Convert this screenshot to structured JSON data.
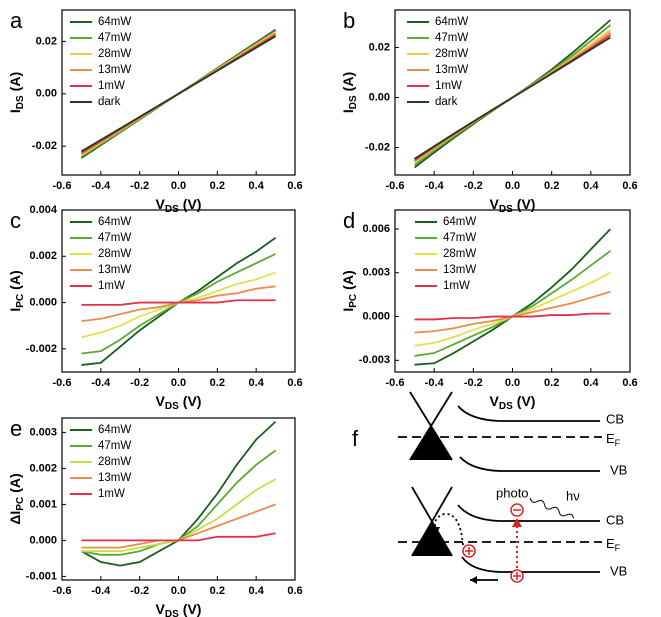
{
  "chart_data": [
    {
      "type": "line",
      "panel": "a",
      "xlabel": {
        "main": "V",
        "sub": "DS",
        "unit": "(V)"
      },
      "ylabel": {
        "main": "I",
        "sub": "DS",
        "unit": "(A)"
      },
      "xlim": [
        -0.6,
        0.6
      ],
      "xticks": [
        -0.6,
        -0.4,
        -0.2,
        {
          "value": 0,
          "label": "0.0"
        },
        0.2,
        0.4,
        0.6
      ],
      "ylim": [
        -0.031,
        0.032
      ],
      "yticks": [
        -0.02,
        {
          "value": 0,
          "label": "0.00"
        },
        0.02
      ],
      "x": [
        -0.5,
        -0.4,
        -0.3,
        -0.2,
        -0.1,
        0,
        0.1,
        0.2,
        0.3,
        0.4,
        0.5
      ],
      "series": [
        {
          "name": "64mW",
          "color": "#1b5e20",
          "values": [
            -0.0245,
            -0.0196,
            -0.0147,
            -0.0098,
            -0.0049,
            0,
            0.0049,
            0.0098,
            0.0147,
            0.0196,
            0.0245
          ]
        },
        {
          "name": "47mW",
          "color": "#5aab32",
          "values": [
            -0.024,
            -0.0192,
            -0.0144,
            -0.0096,
            -0.0048,
            0,
            0.0048,
            0.0096,
            0.0144,
            0.0192,
            0.024
          ]
        },
        {
          "name": "28mW",
          "color": "#f2c84b",
          "values": [
            -0.0235,
            -0.0188,
            -0.0141,
            -0.0094,
            -0.0047,
            0,
            0.0047,
            0.0094,
            0.0141,
            0.0188,
            0.0235
          ]
        },
        {
          "name": "13mW",
          "color": "#ee8a4e",
          "values": [
            -0.023,
            -0.0184,
            -0.0138,
            -0.0092,
            -0.0046,
            0,
            0.0046,
            0.0092,
            0.0138,
            0.0184,
            0.023
          ]
        },
        {
          "name": "1mW",
          "color": "#e3314b",
          "values": [
            -0.0225,
            -0.018,
            -0.0135,
            -0.009,
            -0.0045,
            0,
            0.0045,
            0.009,
            0.0135,
            0.018,
            0.0225
          ]
        },
        {
          "name": "dark",
          "color": "#1f3f1f",
          "values": [
            -0.022,
            -0.0176,
            -0.0132,
            -0.0088,
            -0.0044,
            0,
            0.0044,
            0.0088,
            0.0132,
            0.0176,
            0.022
          ]
        }
      ]
    },
    {
      "type": "line",
      "panel": "b",
      "xlabel": {
        "main": "V",
        "sub": "DS",
        "unit": "(V)"
      },
      "ylabel": {
        "main": "I",
        "sub": "DS",
        "unit": "(A)"
      },
      "xlim": [
        -0.6,
        0.6
      ],
      "xticks": [
        -0.6,
        -0.4,
        -0.2,
        {
          "value": 0,
          "label": "0.0"
        },
        0.2,
        0.4,
        0.6
      ],
      "ylim": [
        -0.031,
        0.035
      ],
      "yticks": [
        -0.02,
        {
          "value": 0,
          "label": "0.00"
        },
        0.02
      ],
      "x": [
        -0.5,
        -0.4,
        -0.3,
        -0.2,
        -0.1,
        0,
        0.1,
        0.2,
        0.3,
        0.4,
        0.5
      ],
      "series": [
        {
          "name": "64mW",
          "color": "#1b5e20",
          "values": [
            -0.028,
            -0.022,
            -0.0162,
            -0.0106,
            -0.0052,
            0,
            0.0054,
            0.0112,
            0.0175,
            0.0242,
            0.031
          ]
        },
        {
          "name": "47mW",
          "color": "#5aab32",
          "values": [
            -0.027,
            -0.0212,
            -0.0156,
            -0.0102,
            -0.005,
            0,
            0.0052,
            0.0106,
            0.0164,
            0.0226,
            0.029
          ]
        },
        {
          "name": "28mW",
          "color": "#f2c84b",
          "values": [
            -0.026,
            -0.0205,
            -0.0151,
            -0.0099,
            -0.0049,
            0,
            0.005,
            0.0101,
            0.0155,
            0.0212,
            0.027
          ]
        },
        {
          "name": "13mW",
          "color": "#ee8a4e",
          "values": [
            -0.0255,
            -0.0202,
            -0.0149,
            -0.0098,
            -0.0048,
            0,
            0.0049,
            0.0099,
            0.015,
            0.0204,
            0.026
          ]
        },
        {
          "name": "1mW",
          "color": "#e3314b",
          "values": [
            -0.025,
            -0.0198,
            -0.0147,
            -0.0097,
            -0.0048,
            0,
            0.0048,
            0.0097,
            0.0146,
            0.0197,
            0.025
          ]
        },
        {
          "name": "dark",
          "color": "#1f3f1f",
          "values": [
            -0.0245,
            -0.0195,
            -0.0145,
            -0.0096,
            -0.0048,
            0,
            0.0047,
            0.0095,
            0.0143,
            0.0192,
            0.024
          ]
        }
      ]
    },
    {
      "type": "line",
      "panel": "c",
      "xlabel": {
        "main": "V",
        "sub": "DS",
        "unit": "(V)"
      },
      "ylabel": {
        "main": "I",
        "sub": "PC",
        "unit": "(A)"
      },
      "xlim": [
        -0.6,
        0.6
      ],
      "xticks": [
        -0.6,
        -0.4,
        -0.2,
        {
          "value": 0,
          "label": "0.0"
        },
        0.2,
        0.4,
        0.6
      ],
      "ylim": [
        -0.003,
        0.004
      ],
      "yticks": [
        -0.002,
        {
          "value": 0,
          "label": "0.000"
        },
        0.002,
        0.004
      ],
      "x": [
        -0.5,
        -0.4,
        -0.3,
        -0.2,
        -0.1,
        0,
        0.1,
        0.2,
        0.3,
        0.4,
        0.5
      ],
      "series": [
        {
          "name": "64mW",
          "color": "#1b5e20",
          "values": [
            -0.0027,
            -0.0026,
            -0.0019,
            -0.0012,
            -0.0006,
            0,
            0.0005,
            0.0011,
            0.0017,
            0.0022,
            0.0028
          ]
        },
        {
          "name": "47mW",
          "color": "#5aab32",
          "values": [
            -0.0022,
            -0.0021,
            -0.0016,
            -0.001,
            -0.0005,
            0,
            0.0004,
            0.0009,
            0.0013,
            0.0017,
            0.0021
          ]
        },
        {
          "name": "28mW",
          "color": "#e4e04a",
          "values": [
            -0.0015,
            -0.0013,
            -0.001,
            -0.0006,
            -0.0003,
            0,
            0.0002,
            0.0005,
            0.0008,
            0.001,
            0.0013
          ]
        },
        {
          "name": "13mW",
          "color": "#ee8a4e",
          "values": [
            -0.0008,
            -0.0007,
            -0.0005,
            -0.0003,
            -0.0002,
            0,
            0.0001,
            0.0003,
            0.0004,
            0.0006,
            0.0007
          ]
        },
        {
          "name": "1mW",
          "color": "#e3314b",
          "values": [
            -0.0001,
            -0.0001,
            -0.0001,
            0,
            0,
            0,
            0,
            0,
            0.0001,
            0.0001,
            0.0001
          ]
        }
      ]
    },
    {
      "type": "line",
      "panel": "d",
      "xlabel": {
        "main": "V",
        "sub": "DS",
        "unit": "(V)"
      },
      "ylabel": {
        "main": "I",
        "sub": "PC",
        "unit": "(A)"
      },
      "xlim": [
        -0.6,
        0.6
      ],
      "xticks": [
        -0.6,
        -0.4,
        -0.2,
        {
          "value": 0,
          "label": "0.0"
        },
        0.2,
        0.4,
        0.6
      ],
      "ylim": [
        -0.0038,
        0.0073
      ],
      "yticks": [
        -0.003,
        {
          "value": 0,
          "label": "0.000"
        },
        0.003,
        0.006
      ],
      "x": [
        -0.5,
        -0.4,
        -0.3,
        -0.2,
        -0.1,
        0,
        0.1,
        0.2,
        0.3,
        0.4,
        0.5
      ],
      "series": [
        {
          "name": "64mW",
          "color": "#1b5e20",
          "values": [
            -0.0033,
            -0.0032,
            -0.0025,
            -0.0017,
            -0.0009,
            0,
            0.0009,
            0.002,
            0.0032,
            0.0046,
            0.006
          ]
        },
        {
          "name": "47mW",
          "color": "#5aab32",
          "values": [
            -0.0027,
            -0.0025,
            -0.0019,
            -0.0013,
            -0.0007,
            0,
            0.0007,
            0.0016,
            0.0025,
            0.0035,
            0.0045
          ]
        },
        {
          "name": "28mW",
          "color": "#e4e04a",
          "values": [
            -0.002,
            -0.0018,
            -0.0014,
            -0.0009,
            -0.0005,
            0,
            0.0005,
            0.0011,
            0.0017,
            0.0023,
            0.003
          ]
        },
        {
          "name": "13mW",
          "color": "#ee8a4e",
          "values": [
            -0.0011,
            -0.001,
            -0.0008,
            -0.0005,
            -0.0003,
            0,
            0.0003,
            0.0006,
            0.0009,
            0.0013,
            0.0017
          ]
        },
        {
          "name": "1mW",
          "color": "#e3314b",
          "values": [
            -0.0002,
            -0.0002,
            -0.0001,
            -0.0001,
            0,
            0,
            0,
            0.0001,
            0.0001,
            0.0002,
            0.0002
          ]
        }
      ]
    },
    {
      "type": "line",
      "panel": "e",
      "xlabel": {
        "main": "V",
        "sub": "DS",
        "unit": "(V)"
      },
      "ylabel": {
        "main": "ΔI",
        "sub": "PC",
        "unit": "(A)"
      },
      "xlim": [
        -0.6,
        0.6
      ],
      "xticks": [
        -0.6,
        -0.4,
        -0.2,
        {
          "value": 0,
          "label": "0.0"
        },
        0.2,
        0.4,
        0.6
      ],
      "ylim": [
        -0.0011,
        0.0034
      ],
      "yticks": [
        -0.001,
        {
          "value": 0,
          "label": "0.000"
        },
        0.001,
        0.002,
        0.003
      ],
      "x": [
        -0.5,
        -0.4,
        -0.3,
        -0.2,
        -0.1,
        0,
        0.1,
        0.2,
        0.3,
        0.4,
        0.5
      ],
      "series": [
        {
          "name": "64mW",
          "color": "#1b5e20",
          "values": [
            -0.0003,
            -0.0006,
            -0.0007,
            -0.0006,
            -0.0003,
            0,
            0.0006,
            0.0013,
            0.0021,
            0.0028,
            0.0033
          ]
        },
        {
          "name": "47mW",
          "color": "#5aab32",
          "values": [
            -0.0003,
            -0.0004,
            -0.0004,
            -0.0003,
            -0.0001,
            0,
            0.0004,
            0.001,
            0.0016,
            0.0021,
            0.0025
          ]
        },
        {
          "name": "28mW",
          "color": "#c8dc4a",
          "values": [
            -0.0003,
            -0.0003,
            -0.0003,
            -0.0002,
            -0.0001,
            0,
            0.0003,
            0.0006,
            0.001,
            0.0014,
            0.0017
          ]
        },
        {
          "name": "13mW",
          "color": "#ee8a4e",
          "values": [
            -0.0002,
            -0.0002,
            -0.0002,
            -0.0001,
            0,
            0,
            0.0002,
            0.0004,
            0.0006,
            0.0008,
            0.001
          ]
        },
        {
          "name": "1mW",
          "color": "#e3314b",
          "values": [
            0,
            0,
            0,
            0,
            0,
            0,
            0,
            0.0001,
            0.0001,
            0.0001,
            0.0002
          ]
        }
      ]
    }
  ],
  "diagram": {
    "panel": "f",
    "top": {
      "cb": "CB",
      "ef_main": "E",
      "ef_sub": "F",
      "vb": "VB"
    },
    "bottom": {
      "photo": "photo",
      "hv": "hν",
      "cb": "CB",
      "ef_main": "E",
      "ef_sub": "F",
      "vb": "VB"
    }
  }
}
